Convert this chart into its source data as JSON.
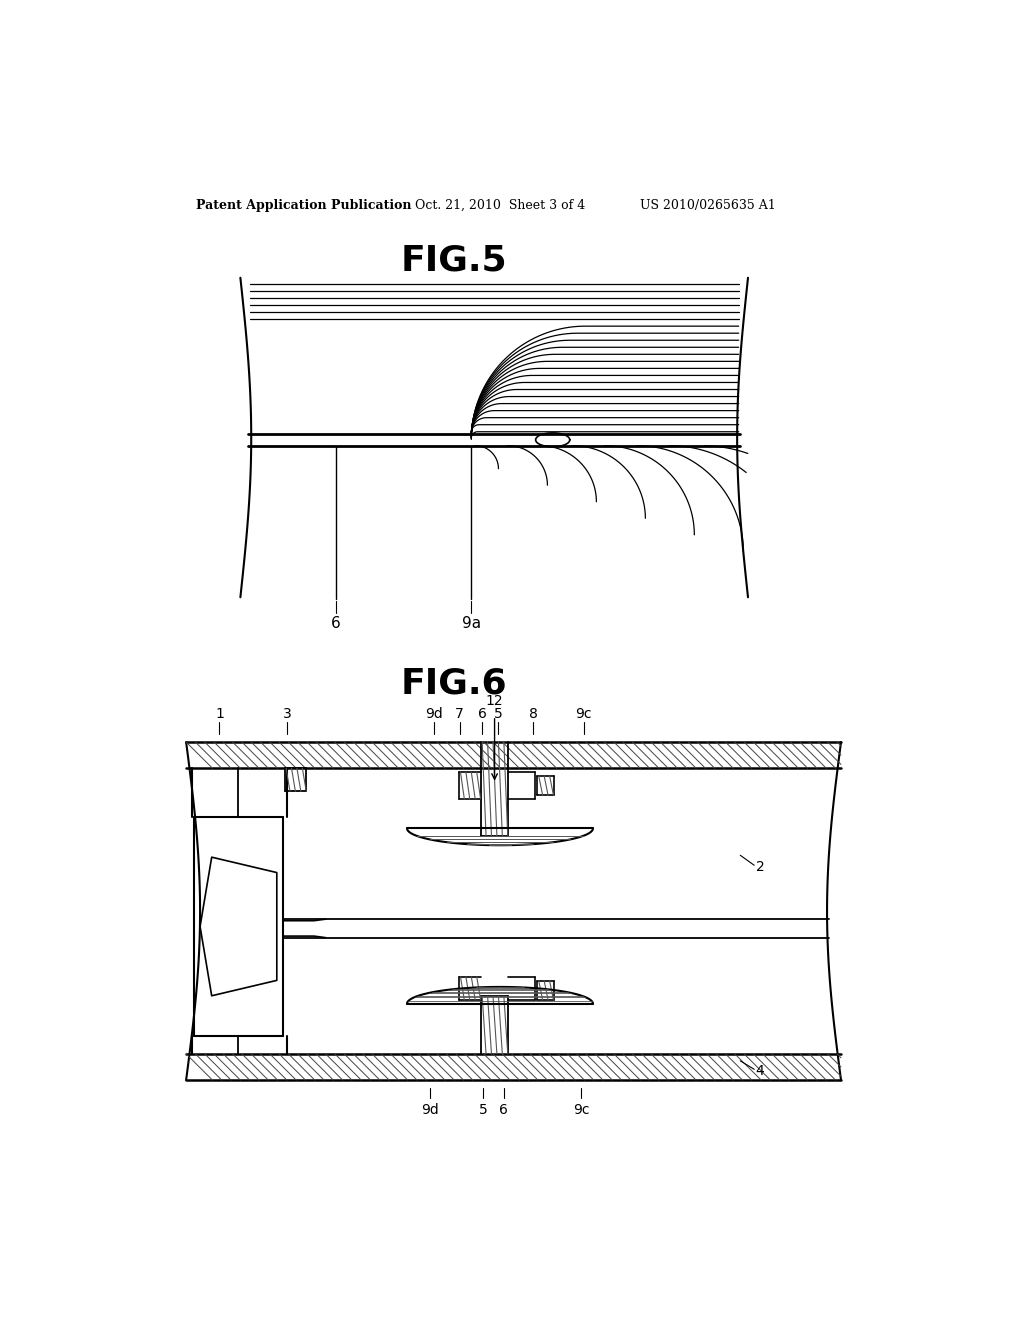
{
  "bg_color": "#ffffff",
  "line_color": "#000000",
  "header_text": "Patent Application Publication",
  "header_date": "Oct. 21, 2010  Sheet 3 of 4",
  "header_patent": "US 2010/0265635 A1",
  "fig5_title": "FIG.5",
  "fig6_title": "FIG.6",
  "label_6": "6",
  "label_9a": "9a",
  "label_1": "1",
  "label_2": "2",
  "label_3": "3",
  "label_4": "4",
  "label_5": "5",
  "label_6b": "6",
  "label_7": "7",
  "label_8": "8",
  "label_9c": "9c",
  "label_9d": "9d",
  "label_12": "12"
}
